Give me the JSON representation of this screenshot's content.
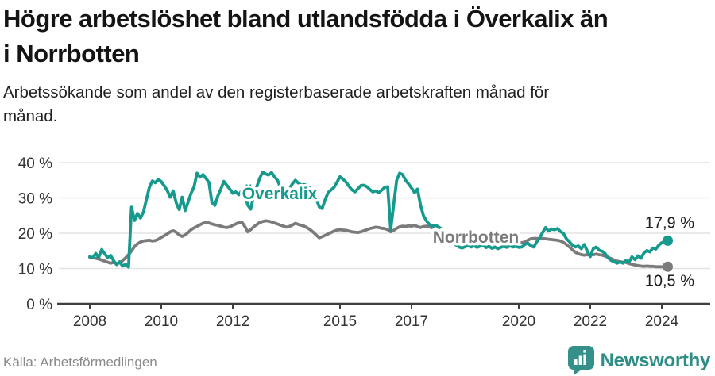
{
  "header": {
    "title_lines": [
      "Högre arbetslöshet bland utlandsfödda i Överkalix än",
      "i Norrbotten"
    ],
    "subtitle_lines": [
      "Arbetssökande som andel av den registerbaserade arbetskraften månad för",
      "månad."
    ]
  },
  "footer": {
    "source": "Källa: Arbetsförmedlingen",
    "brand": "Newsworthy"
  },
  "colors": {
    "overkalix": "#169a8d",
    "norrbotten": "#7b7b7b",
    "grid": "#e3e3e3",
    "axis": "#3f3f3f",
    "axis_text": "#333333",
    "end_label": "#1f1f1f",
    "logo": "#35908a"
  },
  "chart_data": {
    "type": "line",
    "title": "Högre arbetslöshet bland utlandsfödda i Överkalix än i Norrbotten",
    "subtitle": "Arbetssökande som andel av den registerbaserade arbetskraften månad för månad.",
    "unit": "%",
    "frequency": "monthly",
    "start_year": 2008,
    "end_point": "2024-03",
    "grid": true,
    "ylim": [
      0,
      40
    ],
    "y_axis": {
      "ticks": [
        {
          "value": 0,
          "label": "0 %"
        },
        {
          "value": 10,
          "label": "10 %"
        },
        {
          "value": 20,
          "label": "20 %"
        },
        {
          "value": 30,
          "label": "30 %"
        },
        {
          "value": 40,
          "label": "40 %"
        }
      ]
    },
    "x_axis": {
      "ticks": [
        {
          "year": 2008,
          "label": "2008"
        },
        {
          "year": 2010,
          "label": "2010"
        },
        {
          "year": 2012,
          "label": "2012"
        },
        {
          "year": 2015,
          "label": "2015"
        },
        {
          "year": 2017,
          "label": "2017"
        },
        {
          "year": 2020,
          "label": "2020"
        },
        {
          "year": 2022,
          "label": "2022"
        },
        {
          "year": 2024,
          "label": "2024"
        }
      ]
    },
    "series": [
      {
        "name": "Överkalix",
        "color": "#169a8d",
        "end_label": "17,9 %",
        "values": [
          13.4,
          13.0,
          14.3,
          13.2,
          15.4,
          14.2,
          13.1,
          13.7,
          12.2,
          11.1,
          11.9,
          10.7,
          11.2,
          10.4,
          27.4,
          23.6,
          25.6,
          24.3,
          26.0,
          29.5,
          33.0,
          34.8,
          34.3,
          35.3,
          34.6,
          33.4,
          32.1,
          30.2,
          32.0,
          28.6,
          26.7,
          30.2,
          26.4,
          28.8,
          31.3,
          33.2,
          37.0,
          35.9,
          36.6,
          35.5,
          34.4,
          28.6,
          27.9,
          30.6,
          32.5,
          34.7,
          33.6,
          32.5,
          31.3,
          31.7,
          30.9,
          32.1,
          31.4,
          28.0,
          26.8,
          30.5,
          33.0,
          35.5,
          37.3,
          36.8,
          36.5,
          37.2,
          36.0,
          35.0,
          33.0,
          31.5,
          31.2,
          32.5,
          34.0,
          35.0,
          34.2,
          33.6,
          33.8,
          33.4,
          32.8,
          31.5,
          29.8,
          27.5,
          27.0,
          29.5,
          31.5,
          32.3,
          33.0,
          34.5,
          36.0,
          35.3,
          34.5,
          33.3,
          32.3,
          31.7,
          32.6,
          33.5,
          33.6,
          33.2,
          32.4,
          31.7,
          32.0,
          31.5,
          32.2,
          33.0,
          33.2,
          21.0,
          28.0,
          35.0,
          37.0,
          36.6,
          35.0,
          34.0,
          32.8,
          31.5,
          32.5,
          28.0,
          25.0,
          23.5,
          22.5,
          22.0,
          22.3,
          21.8,
          21.3,
          20.5,
          19.3,
          18.2,
          17.3,
          16.6,
          16.1,
          15.8,
          16.2,
          16.5,
          16.1,
          16.4,
          16.0,
          16.3,
          16.6,
          15.9,
          16.3,
          15.7,
          16.1,
          15.6,
          16.0,
          16.3,
          16.0,
          16.4,
          16.1,
          16.3,
          16.0,
          16.1,
          16.8,
          17.2,
          16.5,
          16.1,
          17.5,
          18.7,
          20.2,
          21.6,
          20.6,
          21.2,
          21.0,
          21.3,
          20.5,
          19.9,
          18.4,
          17.6,
          16.6,
          16.1,
          16.4,
          15.6,
          16.8,
          14.9,
          13.4,
          15.6,
          16.1,
          15.2,
          14.9,
          14.2,
          13.0,
          12.3,
          11.9,
          11.5,
          11.9,
          11.5,
          12.3,
          11.8,
          13.3,
          12.5,
          13.6,
          12.9,
          14.4,
          15.1,
          14.7,
          15.8,
          15.5,
          16.6,
          17.3,
          17.7,
          17.9
        ]
      },
      {
        "name": "Norrbotten",
        "color": "#7b7b7b",
        "end_label": "10,5 %",
        "values": [
          13.2,
          13.1,
          12.9,
          12.7,
          12.4,
          12.1,
          11.8,
          11.5,
          11.8,
          11.4,
          11.6,
          12.2,
          13.0,
          13.9,
          15.0,
          16.2,
          17.0,
          17.5,
          17.8,
          17.9,
          18.0,
          17.8,
          17.9,
          18.3,
          18.8,
          19.3,
          19.8,
          20.4,
          20.7,
          20.3,
          19.5,
          19.1,
          19.5,
          20.2,
          21.0,
          21.5,
          21.9,
          22.4,
          22.8,
          23.1,
          22.9,
          22.6,
          22.4,
          22.2,
          22.0,
          21.7,
          21.6,
          21.8,
          22.2,
          22.6,
          23.0,
          23.2,
          22.0,
          20.4,
          21.0,
          21.8,
          22.4,
          23.0,
          23.3,
          23.5,
          23.4,
          23.2,
          22.9,
          22.6,
          22.3,
          22.0,
          21.7,
          21.9,
          22.3,
          22.8,
          22.5,
          22.2,
          22.0,
          21.5,
          21.0,
          20.3,
          19.5,
          18.7,
          19.0,
          19.4,
          19.8,
          20.2,
          20.6,
          20.9,
          21.0,
          20.9,
          20.8,
          20.6,
          20.4,
          20.3,
          20.2,
          20.4,
          20.7,
          21.0,
          21.3,
          21.5,
          21.7,
          21.6,
          21.4,
          21.3,
          21.0,
          20.4,
          20.8,
          21.4,
          21.8,
          22.0,
          21.9,
          22.1,
          22.0,
          22.2,
          21.9,
          21.6,
          21.9,
          22.0,
          21.8,
          21.5,
          21.2,
          20.8,
          20.4,
          20.0,
          19.6,
          19.2,
          18.9,
          18.6,
          18.4,
          18.2,
          18.0,
          17.9,
          17.8,
          17.7,
          17.6,
          17.5,
          17.5,
          17.4,
          17.4,
          17.3,
          17.3,
          17.2,
          17.2,
          17.3,
          17.3,
          17.2,
          17.3,
          17.3,
          17.4,
          17.3,
          17.5,
          18.0,
          18.4,
          18.5,
          18.5,
          18.4,
          18.5,
          18.4,
          18.3,
          18.2,
          18.1,
          18.0,
          17.8,
          17.4,
          16.8,
          16.1,
          15.3,
          14.6,
          14.2,
          13.9,
          13.8,
          13.9,
          13.8,
          13.9,
          14.1,
          13.9,
          13.8,
          13.5,
          13.2,
          12.8,
          12.4,
          12.1,
          11.9,
          11.8,
          11.7,
          11.4,
          11.2,
          11.0,
          10.8,
          10.7,
          10.6,
          10.7,
          10.6,
          10.6,
          10.5,
          10.5,
          10.5,
          10.4,
          10.5
        ]
      }
    ],
    "legend_position": "inline-labels"
  }
}
